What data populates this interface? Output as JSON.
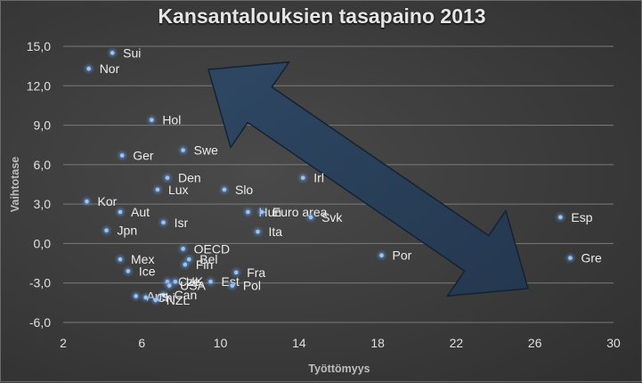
{
  "chart_data": {
    "type": "scatter",
    "title": "Kansantalouksien tasapaino 2013",
    "xlabel": "Työttömyys",
    "ylabel": "Vaihtotase",
    "xlim": [
      2,
      30
    ],
    "ylim": [
      -6,
      15
    ],
    "xticks": [
      "2",
      "6",
      "10",
      "14",
      "18",
      "22",
      "26",
      "30"
    ],
    "yticks": [
      "15,0",
      "12,0",
      "9,0",
      "6,0",
      "3,0",
      "0,0",
      "-3,0",
      "-6,0"
    ],
    "grid": "horizontal",
    "point_color": "#9fc3ee",
    "highlight_color": "#e03020",
    "arrow_color": "#24384f",
    "points": [
      {
        "label": "Sui",
        "x": 4.5,
        "y": 14.5
      },
      {
        "label": "Nor",
        "x": 3.3,
        "y": 13.3
      },
      {
        "label": "Hol",
        "x": 6.5,
        "y": 9.4
      },
      {
        "label": "Swe",
        "x": 8.1,
        "y": 7.1
      },
      {
        "label": "Ger",
        "x": 5.0,
        "y": 6.7
      },
      {
        "label": "Den",
        "x": 7.3,
        "y": 5.0
      },
      {
        "label": "Irl",
        "x": 14.2,
        "y": 5.0
      },
      {
        "label": "Lux",
        "x": 6.8,
        "y": 4.1
      },
      {
        "label": "Slo",
        "x": 10.2,
        "y": 4.1
      },
      {
        "label": "Kor",
        "x": 3.2,
        "y": 3.2
      },
      {
        "label": "Aut",
        "x": 4.9,
        "y": 2.4
      },
      {
        "label": "Hun",
        "x": 11.4,
        "y": 2.4
      },
      {
        "label": "Euro area",
        "x": 12.1,
        "y": 2.4
      },
      {
        "label": "Svk",
        "x": 14.6,
        "y": 2.0
      },
      {
        "label": "Esp",
        "x": 27.3,
        "y": 2.0,
        "highlight": true
      },
      {
        "label": "Isr",
        "x": 7.1,
        "y": 1.6
      },
      {
        "label": "Jpn",
        "x": 4.2,
        "y": 1.0
      },
      {
        "label": "Ita",
        "x": 11.9,
        "y": 0.9
      },
      {
        "label": "OECD",
        "x": 8.1,
        "y": -0.4
      },
      {
        "label": "Por",
        "x": 18.2,
        "y": -0.9
      },
      {
        "label": "Gre",
        "x": 27.8,
        "y": -1.1
      },
      {
        "label": "Mex",
        "x": 4.9,
        "y": -1.2
      },
      {
        "label": "Bel",
        "x": 8.4,
        "y": -1.2
      },
      {
        "label": "Fin",
        "x": 8.2,
        "y": -1.6
      },
      {
        "label": "Ice",
        "x": 5.3,
        "y": -2.1
      },
      {
        "label": "Fra",
        "x": 10.8,
        "y": -2.2
      },
      {
        "label": "Cze",
        "x": 7.3,
        "y": -2.9
      },
      {
        "label": "UK",
        "x": 7.7,
        "y": -2.9
      },
      {
        "label": "Est",
        "x": 9.5,
        "y": -2.9
      },
      {
        "label": "USA",
        "x": 7.4,
        "y": -3.2
      },
      {
        "label": "Pol",
        "x": 10.6,
        "y": -3.2
      },
      {
        "label": "Can",
        "x": 7.1,
        "y": -3.9
      },
      {
        "label": "Aus",
        "x": 5.7,
        "y": -4.0
      },
      {
        "label": "Chi",
        "x": 6.2,
        "y": -4.1
      },
      {
        "label": "NZL",
        "x": 6.7,
        "y": -4.3
      }
    ]
  }
}
